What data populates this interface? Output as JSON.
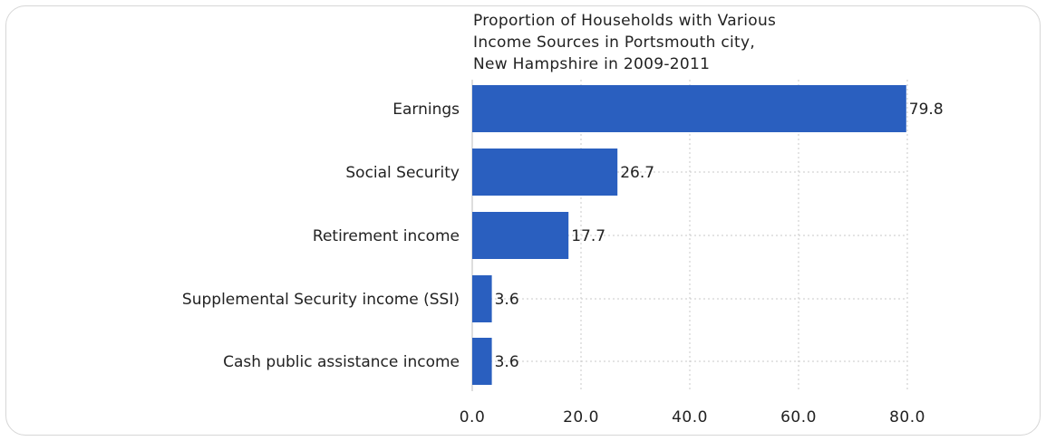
{
  "chart_data": {
    "type": "bar",
    "orientation": "horizontal",
    "title_lines": [
      "Proportion of Households with Various",
      "Income Sources in Portsmouth city,",
      "New Hampshire in 2009-2011"
    ],
    "categories": [
      "Earnings",
      "Social Security",
      "Retirement income",
      "Supplemental Security income (SSI)",
      "Cash public assistance income"
    ],
    "values": [
      79.8,
      26.7,
      17.7,
      3.6,
      3.6
    ],
    "value_labels": [
      "79.8",
      "26.7",
      "17.7",
      "3.6",
      "3.6"
    ],
    "xlim": [
      0,
      80
    ],
    "xticks": [
      0,
      20,
      40,
      60,
      80
    ],
    "xtick_labels": [
      "0.0",
      "20.0",
      "40.0",
      "60.0",
      "80.0"
    ],
    "xlabel": "",
    "ylabel": "",
    "grid": true,
    "bar_color": "#2a5fbf",
    "grid_color": "#c8c8c8"
  }
}
